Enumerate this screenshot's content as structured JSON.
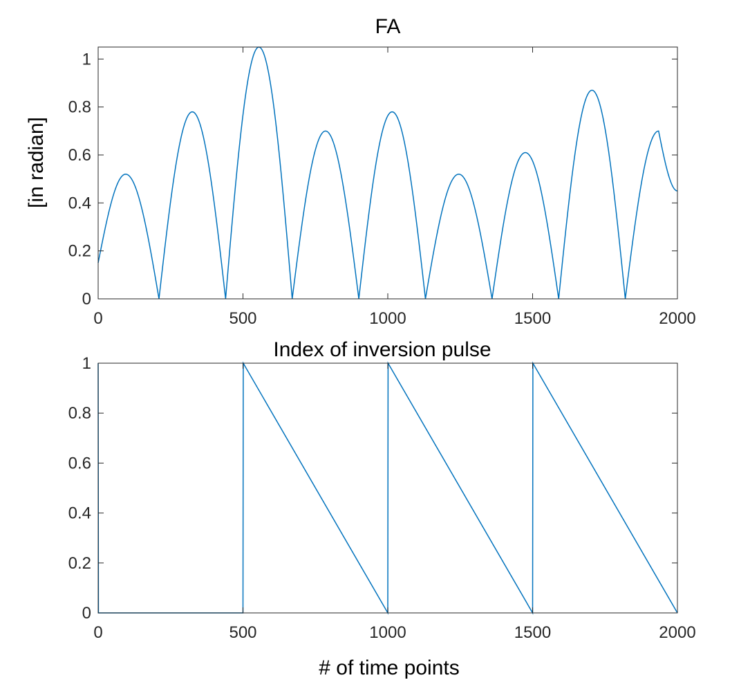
{
  "chart_data": [
    {
      "type": "line",
      "title": "FA",
      "xlabel": "",
      "ylabel": "[in radian]",
      "xlim": [
        0,
        2000
      ],
      "ylim": [
        0,
        1.05
      ],
      "xticks": [
        "0",
        "500",
        "1000",
        "1500",
        "2000"
      ],
      "yticks": [
        "0",
        "0.2",
        "0.4",
        "0.6",
        "0.8",
        "1"
      ],
      "grid": false,
      "line_color": "#0072BD",
      "series": [
        {
          "x": [
            0,
            95,
            210,
            325,
            440,
            555,
            670,
            785,
            900,
            1015,
            1130,
            1245,
            1360,
            1475,
            1590,
            1705,
            1820,
            1935,
            2000
          ],
          "y": [
            0.15,
            0.52,
            0.0,
            0.78,
            0.0,
            1.05,
            0.0,
            0.7,
            0.0,
            0.78,
            0.0,
            0.52,
            0.0,
            0.61,
            0.0,
            0.87,
            0.0,
            0.7,
            0.45
          ]
        }
      ]
    },
    {
      "type": "line",
      "title": "Index of inversion pulse",
      "xlabel": "# of time points",
      "ylabel": "",
      "xlim": [
        0,
        2000
      ],
      "ylim": [
        0,
        1
      ],
      "xticks": [
        "0",
        "500",
        "1000",
        "1500",
        "2000"
      ],
      "yticks": [
        "0",
        "0.2",
        "0.4",
        "0.6",
        "0.8",
        "1"
      ],
      "grid": false,
      "line_color": "#0072BD",
      "series": [
        {
          "x": [
            0,
            1,
            500,
            501,
            1000,
            1001,
            1500,
            1501,
            2000
          ],
          "y": [
            1,
            0,
            0,
            1,
            0,
            1,
            0,
            1,
            0
          ]
        }
      ]
    }
  ]
}
